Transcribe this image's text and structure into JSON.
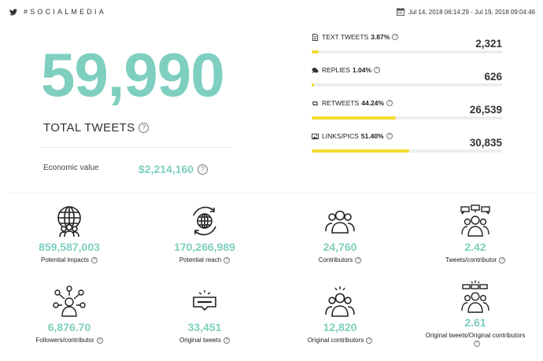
{
  "header": {
    "hashtag": "#SOCIALMEDIA",
    "date_range": "Jul 14, 2018 06:14:29 - Jul 19, 2018 09:04:46"
  },
  "summary": {
    "total_tweets": "59,990",
    "total_label": "TOTAL TWEETS",
    "economic_label": "Economic value",
    "economic_value": "$2,214,160"
  },
  "metrics": [
    {
      "label": "TEXT TWEETS",
      "pct": "3.87%",
      "value": "2,321",
      "fill": 0.0387,
      "icon": "document-icon"
    },
    {
      "label": "REPLIES",
      "pct": "1.04%",
      "value": "626",
      "fill": 0.0104,
      "icon": "speech-bubble-icon"
    },
    {
      "label": "RETWEETS",
      "pct": "44.24%",
      "value": "26,539",
      "fill": 0.4424,
      "icon": "retweet-icon"
    },
    {
      "label": "LINKS/PICS",
      "pct": "51.40%",
      "value": "30,835",
      "fill": 0.514,
      "icon": "picture-icon"
    }
  ],
  "stats": [
    {
      "value": "859,587,003",
      "label": "Potential impacts",
      "icon": "globe-people-icon"
    },
    {
      "value": "170,266,989",
      "label": "Potential reach",
      "icon": "globe-arrows-icon"
    },
    {
      "value": "24,760",
      "label": "Contributors",
      "icon": "group-icon"
    },
    {
      "value": "2.42",
      "label": "Tweets/contributor",
      "icon": "group-chat-icon"
    },
    {
      "value": "6,876.70",
      "label": "Followers/contributor",
      "icon": "network-icon"
    },
    {
      "value": "33,451",
      "label": "Original tweets",
      "icon": "message-icon"
    },
    {
      "value": "12,820",
      "label": "Original contributors",
      "icon": "group-spark-icon"
    },
    {
      "value": "2.61",
      "label": "Original tweets/Original contributors",
      "icon": "group-chat-spark-icon"
    }
  ],
  "colors": {
    "accent": "#7ecfbf",
    "bar": "#f2dd2e",
    "track": "#eeeeee"
  }
}
